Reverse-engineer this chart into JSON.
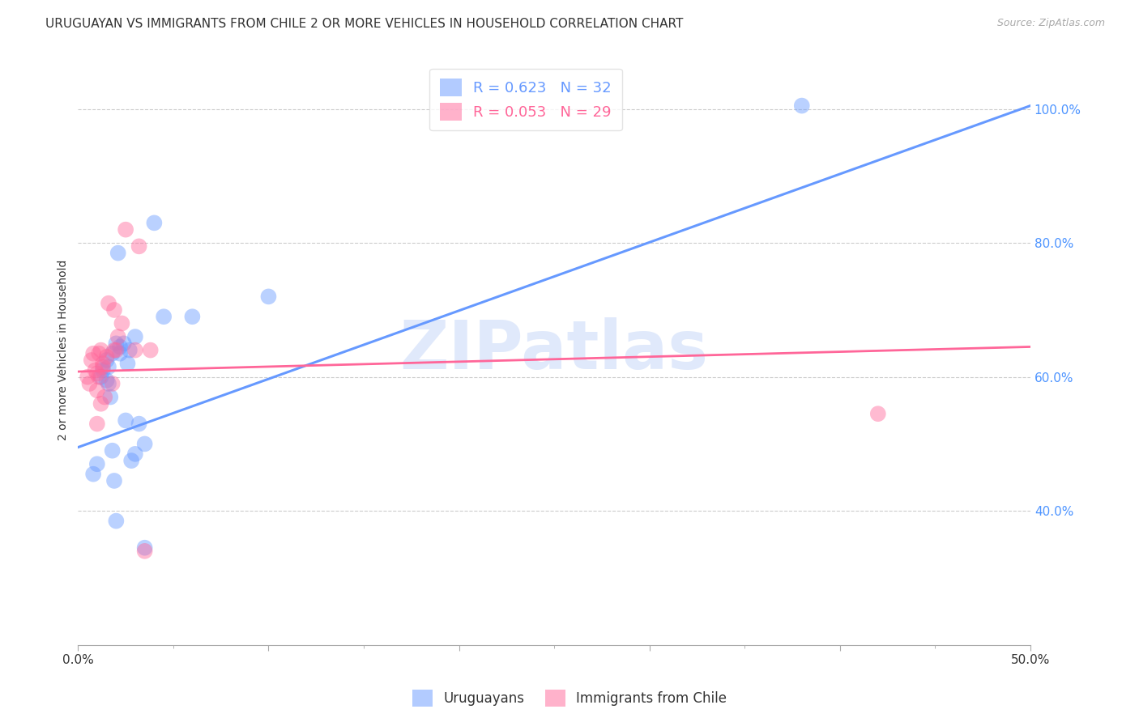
{
  "title": "URUGUAYAN VS IMMIGRANTS FROM CHILE 2 OR MORE VEHICLES IN HOUSEHOLD CORRELATION CHART",
  "source": "Source: ZipAtlas.com",
  "ylabel": "2 or more Vehicles in Household",
  "x_min": 0.0,
  "x_max": 0.5,
  "y_min": 0.2,
  "y_max": 1.08,
  "watermark": "ZIPatlas",
  "uruguayan_color": "#6699ff",
  "chile_color": "#ff6699",
  "uruguayan_scatter": [
    [
      0.008,
      0.455
    ],
    [
      0.01,
      0.47
    ],
    [
      0.012,
      0.6
    ],
    [
      0.013,
      0.61
    ],
    [
      0.015,
      0.595
    ],
    [
      0.015,
      0.625
    ],
    [
      0.016,
      0.59
    ],
    [
      0.016,
      0.615
    ],
    [
      0.017,
      0.57
    ],
    [
      0.018,
      0.635
    ],
    [
      0.02,
      0.65
    ],
    [
      0.021,
      0.785
    ],
    [
      0.022,
      0.635
    ],
    [
      0.022,
      0.645
    ],
    [
      0.024,
      0.65
    ],
    [
      0.025,
      0.535
    ],
    [
      0.026,
      0.62
    ],
    [
      0.027,
      0.64
    ],
    [
      0.03,
      0.66
    ],
    [
      0.032,
      0.53
    ],
    [
      0.035,
      0.5
    ],
    [
      0.04,
      0.83
    ],
    [
      0.045,
      0.69
    ],
    [
      0.018,
      0.49
    ],
    [
      0.019,
      0.445
    ],
    [
      0.02,
      0.385
    ],
    [
      0.028,
      0.475
    ],
    [
      0.03,
      0.485
    ],
    [
      0.035,
      0.345
    ],
    [
      0.1,
      0.72
    ],
    [
      0.38,
      1.005
    ],
    [
      0.06,
      0.69
    ]
  ],
  "chile_scatter": [
    [
      0.005,
      0.6
    ],
    [
      0.006,
      0.59
    ],
    [
      0.007,
      0.625
    ],
    [
      0.008,
      0.635
    ],
    [
      0.009,
      0.61
    ],
    [
      0.01,
      0.605
    ],
    [
      0.01,
      0.58
    ],
    [
      0.011,
      0.6
    ],
    [
      0.011,
      0.635
    ],
    [
      0.012,
      0.56
    ],
    [
      0.012,
      0.64
    ],
    [
      0.013,
      0.615
    ],
    [
      0.013,
      0.62
    ],
    [
      0.014,
      0.57
    ],
    [
      0.015,
      0.63
    ],
    [
      0.016,
      0.71
    ],
    [
      0.018,
      0.59
    ],
    [
      0.019,
      0.64
    ],
    [
      0.019,
      0.7
    ],
    [
      0.02,
      0.64
    ],
    [
      0.021,
      0.66
    ],
    [
      0.023,
      0.68
    ],
    [
      0.025,
      0.82
    ],
    [
      0.03,
      0.64
    ],
    [
      0.032,
      0.795
    ],
    [
      0.035,
      0.34
    ],
    [
      0.038,
      0.64
    ],
    [
      0.42,
      0.545
    ],
    [
      0.01,
      0.53
    ]
  ],
  "blue_line_x": [
    0.0,
    0.5
  ],
  "blue_line_y": [
    0.495,
    1.005
  ],
  "pink_line_x": [
    0.0,
    0.5
  ],
  "pink_line_y": [
    0.608,
    0.645
  ],
  "ytick_values": [
    0.4,
    0.6,
    0.8,
    1.0
  ],
  "ytick_labels": [
    "40.0%",
    "60.0%",
    "80.0%",
    "100.0%"
  ],
  "xtick_values": [
    0.0,
    0.1,
    0.2,
    0.3,
    0.4,
    0.5
  ],
  "xtick_labels": [
    "0.0%",
    "",
    "",
    "",
    "",
    "50.0%"
  ],
  "legend_items": [
    {
      "label": "R = 0.623   N = 32",
      "color": "#6699ff"
    },
    {
      "label": "R = 0.053   N = 29",
      "color": "#ff6699"
    }
  ],
  "bottom_legend": [
    {
      "label": "Uruguayans",
      "color": "#6699ff"
    },
    {
      "label": "Immigrants from Chile",
      "color": "#ff6699"
    }
  ],
  "title_fontsize": 11,
  "axis_label_fontsize": 10,
  "tick_fontsize": 11,
  "source_fontsize": 9
}
